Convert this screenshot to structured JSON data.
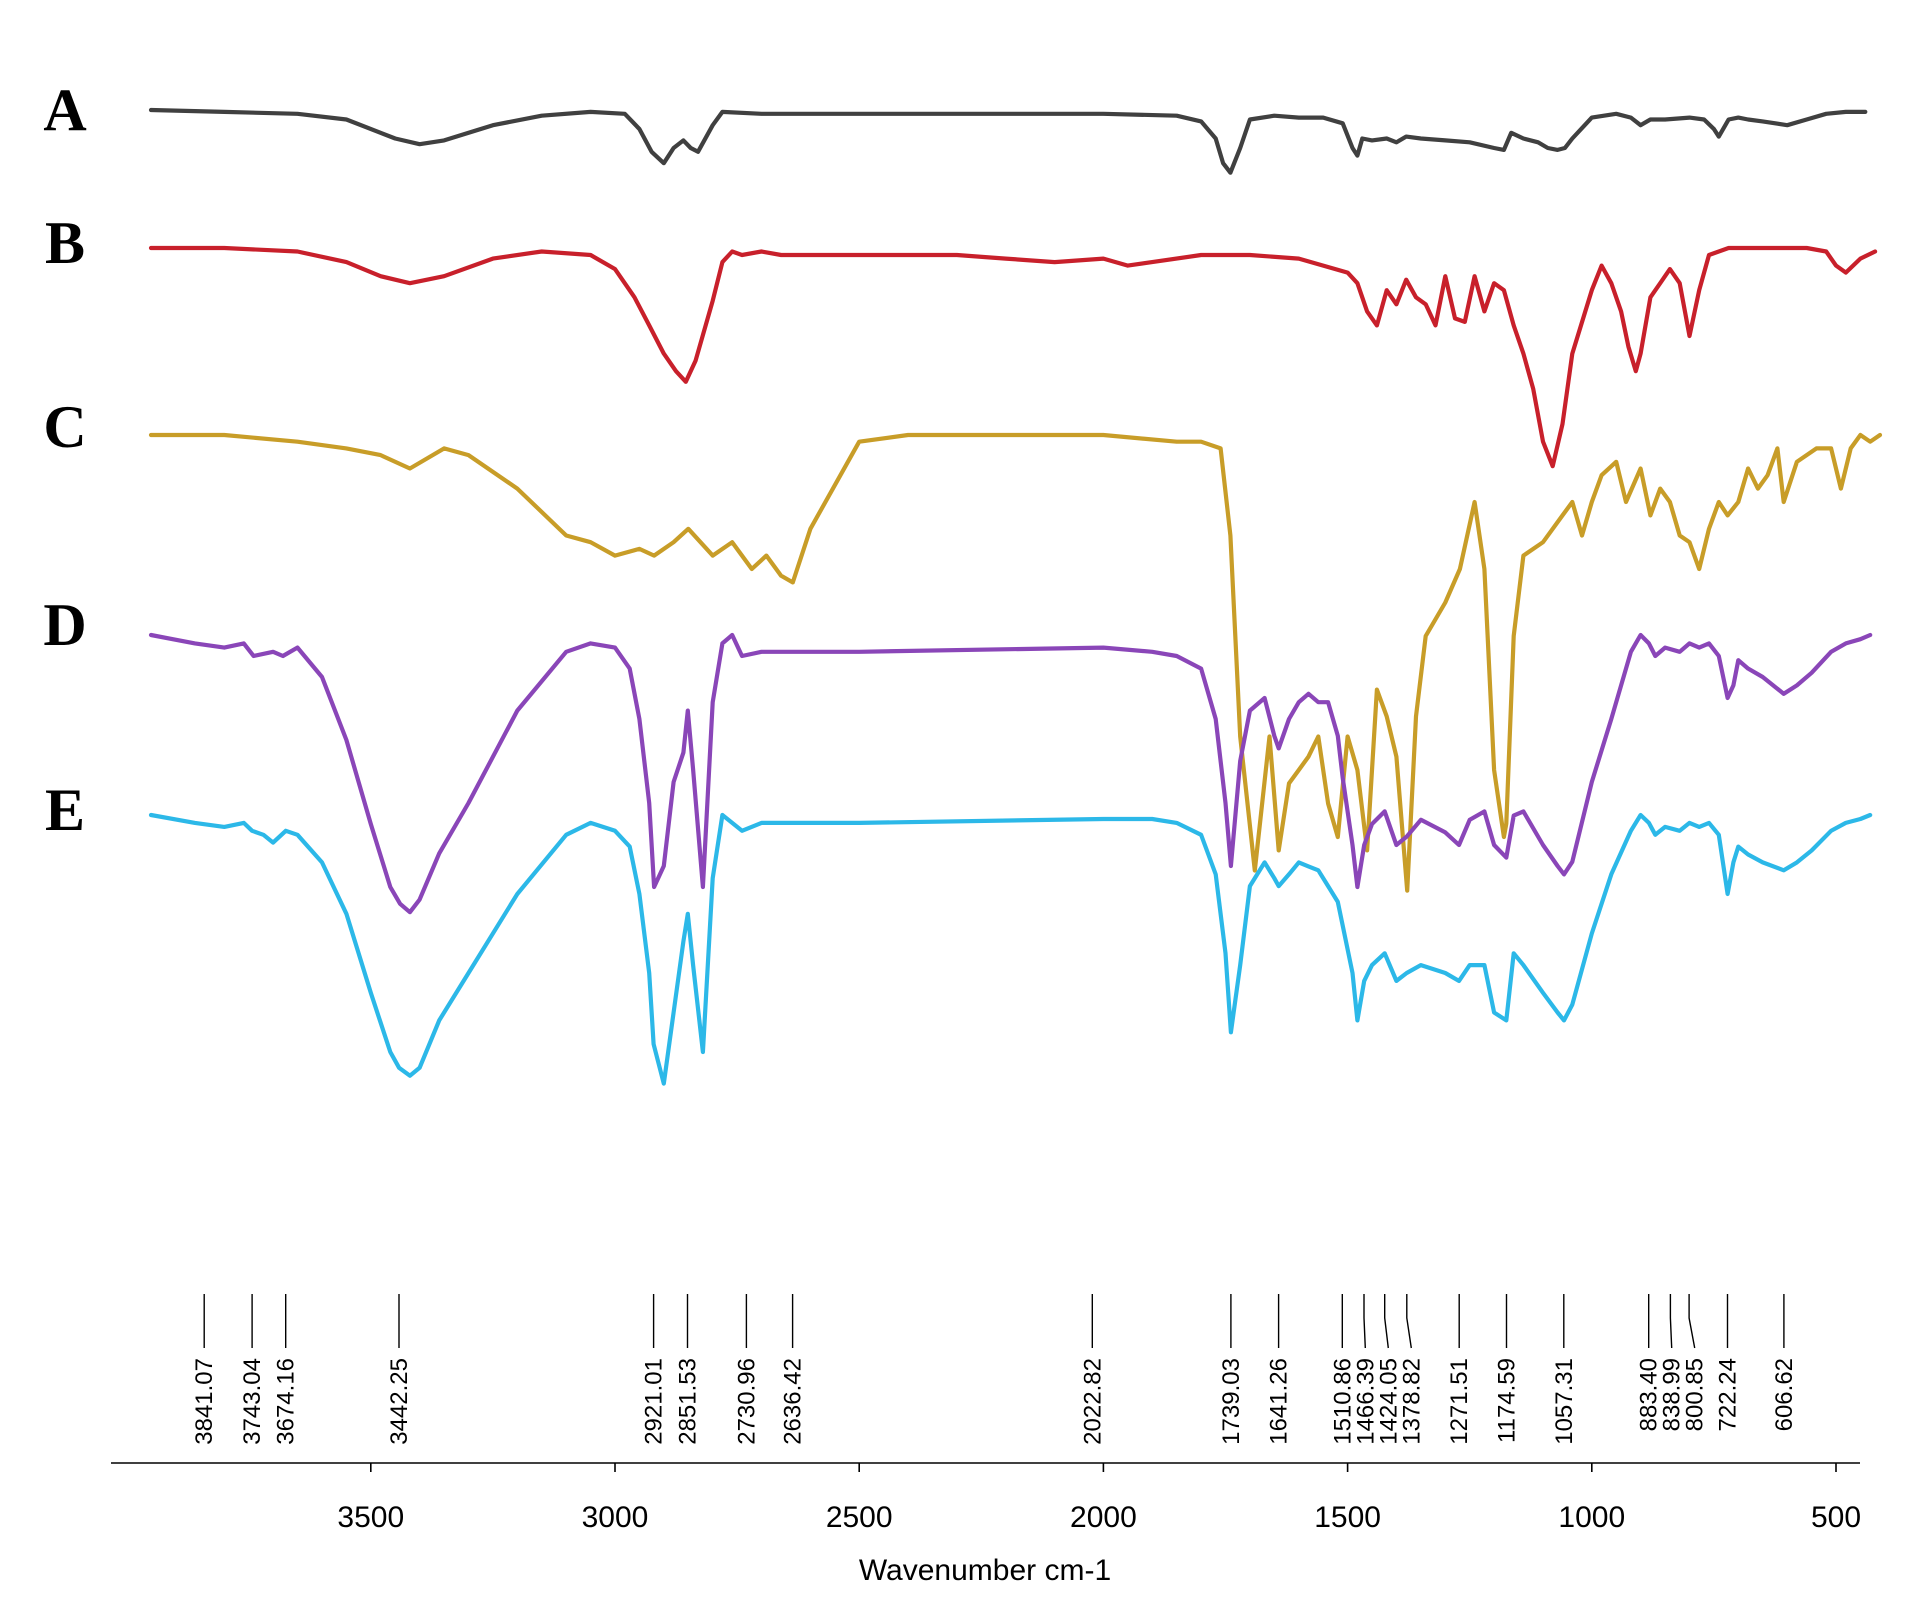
{
  "chart_data": {
    "type": "line",
    "title": "",
    "xlabel": "Wavenumber cm-1",
    "ylabel": "",
    "xlim": [
      4000,
      400
    ],
    "x_reversed": true,
    "grid": false,
    "legend": "letters at left of each trace",
    "x_ticks": [
      "3500",
      "3000",
      "2500",
      "2000",
      "1500",
      "1000",
      "500"
    ],
    "x_tick_values": [
      3500,
      3000,
      2500,
      2000,
      1500,
      1000,
      500
    ],
    "peak_labels": [
      "3841.07",
      "3743.04",
      "3674.16",
      "3442.25",
      "2921.01",
      "2851.53",
      "2730.96",
      "2636.42",
      "2022.82",
      "1739.03",
      "1641.26",
      "1510.86",
      "1466.39",
      "1424.05",
      "1378.82",
      "1271.51",
      "1174.59",
      "1057.31",
      "883.40",
      "838.99",
      "800.85",
      "722.24",
      "606.62"
    ],
    "peak_values": [
      3841.07,
      3743.04,
      3674.16,
      3442.25,
      2921.01,
      2851.53,
      2730.96,
      2636.42,
      2022.82,
      1739.03,
      1641.26,
      1510.86,
      1466.39,
      1424.05,
      1378.82,
      1271.51,
      1174.59,
      1057.31,
      883.4,
      838.99,
      800.85,
      722.24,
      606.62
    ],
    "series": [
      {
        "name": "A",
        "color": "#404040",
        "x": [
          3950,
          3800,
          3650,
          3550,
          3450,
          3400,
          3350,
          3250,
          3150,
          3050,
          2980,
          2950,
          2925,
          2900,
          2880,
          2860,
          2845,
          2830,
          2800,
          2780,
          2700,
          2500,
          2000,
          1850,
          1800,
          1770,
          1755,
          1740,
          1720,
          1700,
          1650,
          1600,
          1550,
          1510,
          1490,
          1480,
          1470,
          1450,
          1420,
          1400,
          1380,
          1350,
          1300,
          1250,
          1200,
          1180,
          1165,
          1140,
          1110,
          1090,
          1070,
          1055,
          1040,
          1000,
          950,
          920,
          900,
          880,
          850,
          800,
          770,
          750,
          740,
          720,
          700,
          680,
          650,
          600,
          560,
          520,
          480,
          440
        ],
        "y": [
          100,
          99,
          98,
          95,
          85,
          82,
          84,
          92,
          97,
          99,
          98,
          90,
          78,
          72,
          80,
          84,
          80,
          78,
          92,
          99,
          98,
          98,
          98,
          97,
          94,
          85,
          72,
          67,
          80,
          95,
          97,
          96,
          96,
          93,
          80,
          76,
          85,
          84,
          85,
          83,
          86,
          85,
          84,
          83,
          80,
          79,
          88,
          85,
          83,
          80,
          79,
          80,
          85,
          96,
          98,
          96,
          92,
          95,
          95,
          96,
          95,
          90,
          86,
          95,
          96,
          95,
          94,
          92,
          95,
          98,
          99,
          99
        ]
      },
      {
        "name": "B",
        "color": "#c8202b",
        "x": [
          3950,
          3800,
          3650,
          3550,
          3480,
          3420,
          3350,
          3250,
          3150,
          3050,
          3000,
          2960,
          2930,
          2900,
          2875,
          2855,
          2835,
          2800,
          2780,
          2760,
          2740,
          2700,
          2660,
          2500,
          2300,
          2200,
          2100,
          2000,
          1950,
          1900,
          1800,
          1700,
          1600,
          1550,
          1500,
          1480,
          1460,
          1440,
          1420,
          1400,
          1380,
          1360,
          1340,
          1320,
          1300,
          1280,
          1260,
          1240,
          1220,
          1200,
          1180,
          1160,
          1140,
          1120,
          1100,
          1080,
          1060,
          1040,
          1000,
          980,
          960,
          940,
          925,
          910,
          900,
          880,
          860,
          840,
          820,
          800,
          780,
          760,
          720,
          680,
          600,
          560,
          520,
          500,
          480,
          450,
          420
        ],
        "y": [
          100,
          100,
          99,
          96,
          92,
          90,
          92,
          97,
          99,
          98,
          94,
          86,
          78,
          70,
          65,
          62,
          68,
          85,
          96,
          99,
          98,
          99,
          98,
          98,
          98,
          97,
          96,
          97,
          95,
          96,
          98,
          98,
          97,
          95,
          93,
          90,
          82,
          78,
          88,
          84,
          91,
          86,
          84,
          78,
          92,
          80,
          79,
          92,
          82,
          90,
          88,
          78,
          70,
          60,
          45,
          38,
          50,
          70,
          88,
          95,
          90,
          82,
          72,
          65,
          70,
          86,
          90,
          94,
          90,
          75,
          88,
          98,
          100,
          100,
          100,
          100,
          99,
          95,
          93,
          97,
          99
        ]
      },
      {
        "name": "C",
        "color": "#c89d28",
        "x": [
          3950,
          3800,
          3650,
          3550,
          3480,
          3420,
          3350,
          3300,
          3200,
          3100,
          3050,
          3000,
          2950,
          2920,
          2880,
          2850,
          2800,
          2760,
          2720,
          2690,
          2660,
          2636,
          2600,
          2500,
          2400,
          2200,
          2000,
          1850,
          1800,
          1760,
          1740,
          1720,
          1690,
          1660,
          1641,
          1620,
          1600,
          1580,
          1560,
          1540,
          1520,
          1500,
          1480,
          1460,
          1440,
          1420,
          1400,
          1378,
          1360,
          1340,
          1300,
          1270,
          1240,
          1220,
          1200,
          1180,
          1175,
          1160,
          1140,
          1100,
          1060,
          1040,
          1020,
          1000,
          980,
          950,
          930,
          900,
          880,
          860,
          840,
          820,
          800,
          780,
          760,
          740,
          722,
          700,
          680,
          660,
          640,
          620,
          607,
          580,
          540,
          510,
          490,
          470,
          450,
          430,
          410
        ],
        "y": [
          100,
          100,
          99,
          98,
          97,
          95,
          98,
          97,
          92,
          85,
          84,
          82,
          83,
          82,
          84,
          86,
          82,
          84,
          80,
          82,
          79,
          78,
          86,
          99,
          100,
          100,
          100,
          99,
          99,
          98,
          85,
          55,
          35,
          55,
          38,
          48,
          50,
          52,
          55,
          45,
          40,
          55,
          50,
          38,
          62,
          58,
          52,
          32,
          58,
          70,
          75,
          80,
          90,
          80,
          50,
          40,
          42,
          70,
          82,
          84,
          88,
          90,
          85,
          90,
          94,
          96,
          90,
          95,
          88,
          92,
          90,
          85,
          84,
          80,
          86,
          90,
          88,
          90,
          95,
          92,
          94,
          98,
          90,
          96,
          98,
          98,
          92,
          98,
          100,
          99,
          100
        ]
      },
      {
        "name": "D",
        "color": "#8a46b8",
        "x": [
          3950,
          3860,
          3800,
          3760,
          3740,
          3700,
          3680,
          3650,
          3600,
          3550,
          3500,
          3460,
          3440,
          3420,
          3400,
          3360,
          3300,
          3200,
          3100,
          3050,
          3000,
          2970,
          2950,
          2930,
          2920,
          2900,
          2880,
          2860,
          2851,
          2840,
          2820,
          2800,
          2780,
          2760,
          2740,
          2700,
          2500,
          2000,
          1900,
          1850,
          1800,
          1770,
          1750,
          1739,
          1720,
          1700,
          1670,
          1650,
          1641,
          1620,
          1600,
          1580,
          1560,
          1540,
          1520,
          1510,
          1490,
          1480,
          1466,
          1450,
          1424,
          1400,
          1379,
          1350,
          1300,
          1272,
          1250,
          1220,
          1200,
          1175,
          1160,
          1140,
          1100,
          1070,
          1057,
          1040,
          1000,
          960,
          920,
          900,
          883,
          870,
          850,
          820,
          800,
          780,
          760,
          740,
          722,
          710,
          700,
          680,
          650,
          607,
          580,
          550,
          510,
          480,
          450,
          430
        ],
        "y": [
          100,
          98,
          97,
          98,
          95,
          96,
          95,
          97,
          90,
          75,
          55,
          40,
          36,
          34,
          37,
          48,
          60,
          82,
          96,
          98,
          97,
          92,
          80,
          60,
          40,
          45,
          65,
          72,
          82,
          68,
          40,
          84,
          98,
          100,
          95,
          96,
          96,
          97,
          96,
          95,
          92,
          80,
          60,
          45,
          70,
          82,
          85,
          76,
          73,
          80,
          84,
          86,
          84,
          84,
          76,
          66,
          50,
          40,
          50,
          55,
          58,
          50,
          52,
          56,
          53,
          50,
          56,
          58,
          50,
          47,
          57,
          58,
          50,
          45,
          43,
          46,
          65,
          80,
          96,
          100,
          98,
          95,
          97,
          96,
          98,
          97,
          98,
          95,
          85,
          88,
          94,
          92,
          90,
          86,
          88,
          91,
          96,
          98,
          99,
          100
        ]
      },
      {
        "name": "E",
        "color": "#2cb8e8",
        "x": [
          3950,
          3860,
          3800,
          3760,
          3743,
          3720,
          3700,
          3674,
          3650,
          3600,
          3550,
          3500,
          3460,
          3442,
          3420,
          3400,
          3360,
          3300,
          3200,
          3100,
          3050,
          3000,
          2970,
          2950,
          2930,
          2921,
          2900,
          2880,
          2860,
          2851,
          2840,
          2820,
          2800,
          2780,
          2760,
          2740,
          2700,
          2500,
          2000,
          1900,
          1850,
          1800,
          1770,
          1750,
          1739,
          1720,
          1700,
          1670,
          1650,
          1641,
          1620,
          1600,
          1580,
          1560,
          1540,
          1520,
          1510,
          1490,
          1480,
          1466,
          1450,
          1424,
          1400,
          1379,
          1350,
          1300,
          1272,
          1250,
          1220,
          1200,
          1175,
          1160,
          1140,
          1100,
          1070,
          1057,
          1040,
          1000,
          960,
          920,
          900,
          883,
          870,
          850,
          820,
          800,
          780,
          760,
          740,
          722,
          710,
          700,
          680,
          650,
          607,
          580,
          550,
          510,
          480,
          450,
          430
        ],
        "y": [
          100,
          98,
          97,
          98,
          96,
          95,
          93,
          96,
          95,
          88,
          75,
          55,
          40,
          36,
          34,
          36,
          48,
          60,
          80,
          95,
          98,
          96,
          92,
          80,
          60,
          42,
          32,
          50,
          68,
          75,
          62,
          40,
          84,
          100,
          98,
          96,
          98,
          98,
          99,
          99,
          98,
          95,
          85,
          65,
          45,
          62,
          82,
          88,
          84,
          82,
          85,
          88,
          87,
          86,
          82,
          78,
          72,
          60,
          48,
          58,
          62,
          65,
          58,
          60,
          62,
          60,
          58,
          62,
          62,
          50,
          48,
          65,
          62,
          55,
          50,
          48,
          52,
          70,
          85,
          96,
          100,
          98,
          95,
          97,
          96,
          98,
          97,
          98,
          95,
          80,
          88,
          92,
          90,
          88,
          86,
          88,
          91,
          96,
          98,
          99,
          100
        ]
      }
    ]
  }
}
